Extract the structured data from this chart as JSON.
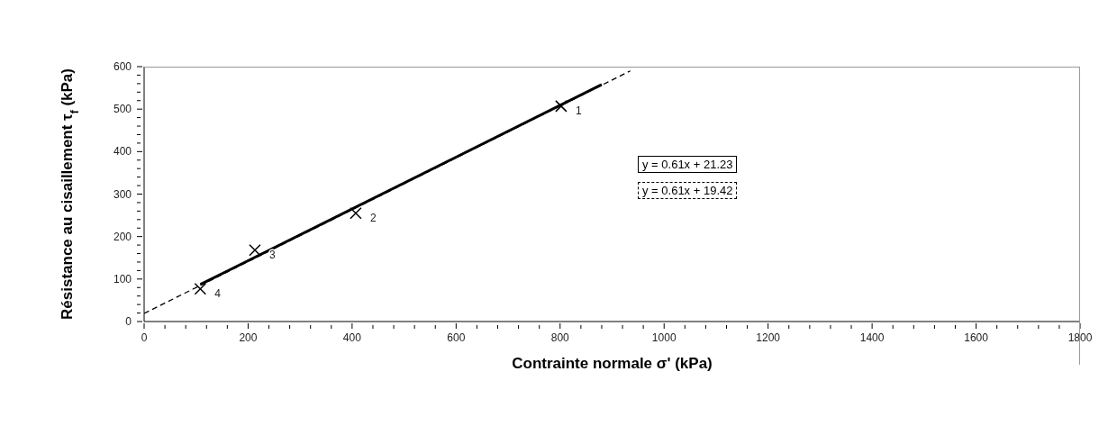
{
  "chart_data": {
    "type": "scatter",
    "xlabel": "Contrainte normale σ' (kPa)",
    "ylabel": "Résistance au cisaillement  τ$_{f}$ (kPa)",
    "xlim": [
      0,
      1800
    ],
    "ylim": [
      0,
      600
    ],
    "xticks": [
      0,
      {
        "value": 40,
        "label": null
      },
      {
        "value": 80,
        "label": null
      },
      {
        "value": 120,
        "label": null
      },
      {
        "value": 160,
        "label": null
      },
      200,
      {
        "value": 240,
        "label": null
      },
      {
        "value": 280,
        "label": null
      },
      {
        "value": 320,
        "label": null
      },
      {
        "value": 360,
        "label": null
      },
      400,
      {
        "value": 440,
        "label": null
      },
      {
        "value": 480,
        "label": null
      },
      {
        "value": 520,
        "label": null
      },
      {
        "value": 560,
        "label": null
      },
      600,
      {
        "value": 640,
        "label": null
      },
      {
        "value": 680,
        "label": null
      },
      {
        "value": 720,
        "label": null
      },
      {
        "value": 760,
        "label": null
      },
      800,
      {
        "value": 840,
        "label": null
      },
      {
        "value": 880,
        "label": null
      },
      {
        "value": 920,
        "label": null
      },
      {
        "value": 960,
        "label": null
      },
      1000,
      {
        "value": 1040,
        "label": null
      },
      {
        "value": 1080,
        "label": null
      },
      {
        "value": 1120,
        "label": null
      },
      {
        "value": 1160,
        "label": null
      },
      1200,
      {
        "value": 1240,
        "label": null
      },
      {
        "value": 1280,
        "label": null
      },
      {
        "value": 1320,
        "label": null
      },
      {
        "value": 1360,
        "label": null
      },
      1400,
      {
        "value": 1440,
        "label": null
      },
      {
        "value": 1480,
        "label": null
      },
      {
        "value": 1520,
        "label": null
      },
      {
        "value": 1560,
        "label": null
      },
      1600,
      {
        "value": 1640,
        "label": null
      },
      {
        "value": 1680,
        "label": null
      },
      {
        "value": 1720,
        "label": null
      },
      {
        "value": 1760,
        "label": null
      },
      1800
    ],
    "yticks": [
      0,
      {
        "value": 20,
        "label": null
      },
      {
        "value": 40,
        "label": null
      },
      {
        "value": 60,
        "label": null
      },
      {
        "value": 80,
        "label": null
      },
      100,
      {
        "value": 120,
        "label": null
      },
      {
        "value": 140,
        "label": null
      },
      {
        "value": 160,
        "label": null
      },
      {
        "value": 180,
        "label": null
      },
      200,
      {
        "value": 220,
        "label": null
      },
      {
        "value": 240,
        "label": null
      },
      {
        "value": 260,
        "label": null
      },
      {
        "value": 280,
        "label": null
      },
      300,
      {
        "value": 320,
        "label": null
      },
      {
        "value": 340,
        "label": null
      },
      {
        "value": 360,
        "label": null
      },
      {
        "value": 380,
        "label": null
      },
      400,
      {
        "value": 420,
        "label": null
      },
      {
        "value": 440,
        "label": null
      },
      {
        "value": 460,
        "label": null
      },
      {
        "value": 480,
        "label": null
      },
      500,
      {
        "value": 520,
        "label": null
      },
      {
        "value": 540,
        "label": null
      },
      {
        "value": 560,
        "label": null
      },
      {
        "value": 580,
        "label": null
      },
      600
    ],
    "grid": false,
    "legend": "right",
    "marker": "cross",
    "series": [
      {
        "color": "#000000",
        "x": [
          802,
          407,
          213,
          108
        ],
        "values": [
          507,
          255,
          168,
          77
        ]
      },
      {
        "type": "line",
        "name": "y = 0.61x + 21.23",
        "color": "#000000",
        "x": [
          108,
          880
        ],
        "values": [
          87,
          558
        ],
        "line_style": "solid",
        "marker": "none"
      },
      {
        "type": "line",
        "name": "y = 0.61x + 19.42",
        "color": "#000000",
        "x": [
          0,
          935
        ],
        "values": [
          19,
          590
        ],
        "line_style": "dashed",
        "marker": "none"
      }
    ],
    "annotations": [
      {
        "text": "1",
        "x": 802,
        "y": 507
      },
      {
        "text": "2",
        "x": 407,
        "y": 255
      },
      {
        "text": "3",
        "x": 213,
        "y": 168
      },
      {
        "text": "4",
        "x": 108,
        "y": 77
      }
    ]
  }
}
